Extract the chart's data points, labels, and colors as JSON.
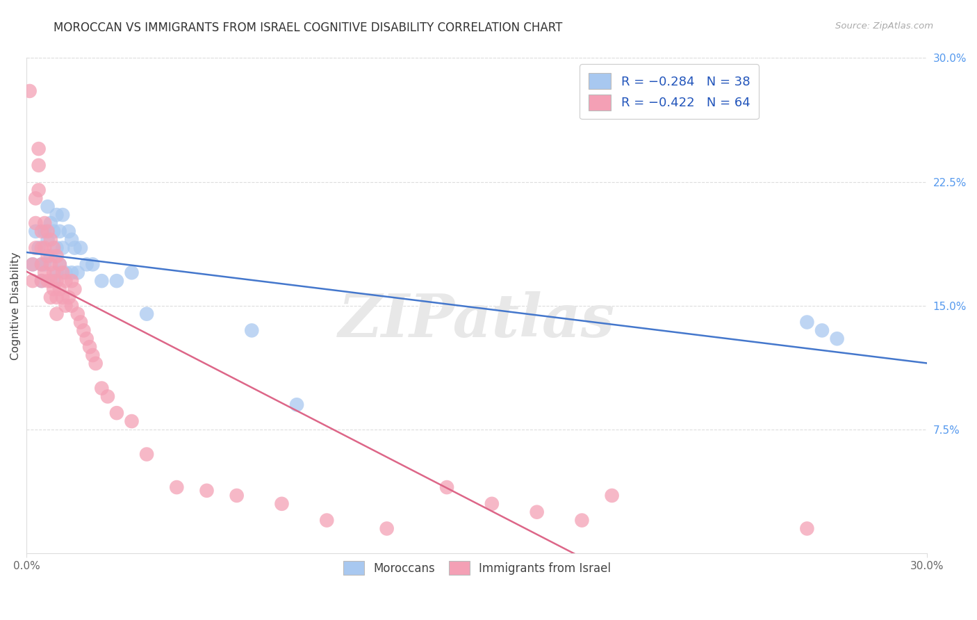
{
  "title": "MOROCCAN VS IMMIGRANTS FROM ISRAEL COGNITIVE DISABILITY CORRELATION CHART",
  "source": "Source: ZipAtlas.com",
  "ylabel": "Cognitive Disability",
  "right_yticks": [
    "30.0%",
    "22.5%",
    "15.0%",
    "7.5%"
  ],
  "right_ytick_vals": [
    0.3,
    0.225,
    0.15,
    0.075
  ],
  "xlim": [
    0.0,
    0.3
  ],
  "ylim": [
    0.0,
    0.3
  ],
  "blue_color": "#A8C8F0",
  "pink_color": "#F4A0B5",
  "blue_line_color": "#4477CC",
  "pink_line_color": "#DD6688",
  "legend_label_blue": "Moroccans",
  "legend_label_pink": "Immigrants from Israel",
  "watermark_text": "ZIPatlas",
  "blue_points_x": [
    0.002,
    0.003,
    0.004,
    0.005,
    0.005,
    0.006,
    0.006,
    0.007,
    0.007,
    0.008,
    0.008,
    0.009,
    0.009,
    0.01,
    0.01,
    0.01,
    0.011,
    0.011,
    0.012,
    0.012,
    0.013,
    0.014,
    0.015,
    0.015,
    0.016,
    0.017,
    0.018,
    0.02,
    0.022,
    0.025,
    0.03,
    0.035,
    0.04,
    0.075,
    0.09,
    0.26,
    0.265,
    0.27
  ],
  "blue_points_y": [
    0.175,
    0.195,
    0.185,
    0.175,
    0.165,
    0.195,
    0.175,
    0.21,
    0.19,
    0.2,
    0.18,
    0.195,
    0.165,
    0.205,
    0.185,
    0.17,
    0.195,
    0.175,
    0.205,
    0.185,
    0.17,
    0.195,
    0.19,
    0.17,
    0.185,
    0.17,
    0.185,
    0.175,
    0.175,
    0.165,
    0.165,
    0.17,
    0.145,
    0.135,
    0.09,
    0.14,
    0.135,
    0.13
  ],
  "pink_points_x": [
    0.001,
    0.002,
    0.002,
    0.003,
    0.003,
    0.003,
    0.004,
    0.004,
    0.004,
    0.005,
    0.005,
    0.005,
    0.005,
    0.006,
    0.006,
    0.006,
    0.007,
    0.007,
    0.007,
    0.008,
    0.008,
    0.008,
    0.008,
    0.009,
    0.009,
    0.009,
    0.01,
    0.01,
    0.01,
    0.01,
    0.011,
    0.011,
    0.012,
    0.012,
    0.013,
    0.013,
    0.014,
    0.015,
    0.015,
    0.016,
    0.017,
    0.018,
    0.019,
    0.02,
    0.021,
    0.022,
    0.023,
    0.025,
    0.027,
    0.03,
    0.035,
    0.04,
    0.05,
    0.06,
    0.07,
    0.085,
    0.1,
    0.12,
    0.14,
    0.155,
    0.17,
    0.185,
    0.195,
    0.26
  ],
  "pink_points_y": [
    0.28,
    0.175,
    0.165,
    0.215,
    0.2,
    0.185,
    0.245,
    0.235,
    0.22,
    0.195,
    0.185,
    0.175,
    0.165,
    0.2,
    0.185,
    0.17,
    0.195,
    0.18,
    0.165,
    0.19,
    0.175,
    0.165,
    0.155,
    0.185,
    0.17,
    0.16,
    0.18,
    0.165,
    0.155,
    0.145,
    0.175,
    0.16,
    0.17,
    0.155,
    0.165,
    0.15,
    0.155,
    0.165,
    0.15,
    0.16,
    0.145,
    0.14,
    0.135,
    0.13,
    0.125,
    0.12,
    0.115,
    0.1,
    0.095,
    0.085,
    0.08,
    0.06,
    0.04,
    0.038,
    0.035,
    0.03,
    0.02,
    0.015,
    0.04,
    0.03,
    0.025,
    0.02,
    0.035,
    0.015
  ]
}
